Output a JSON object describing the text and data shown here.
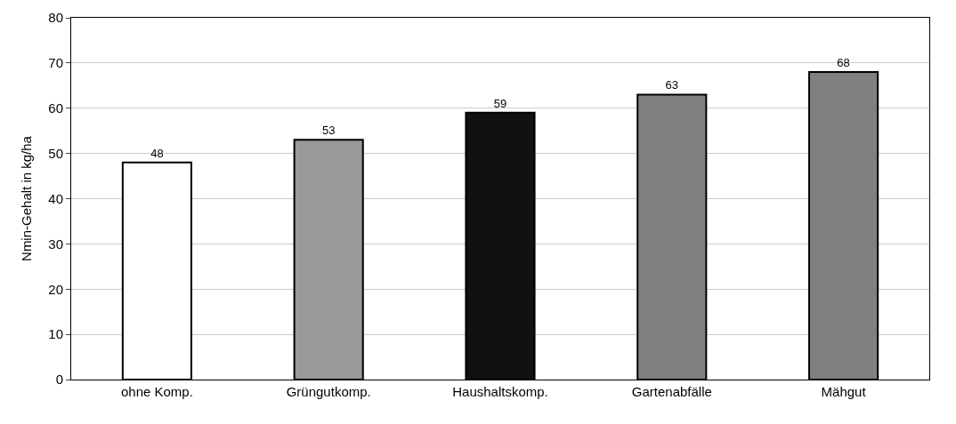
{
  "chart_data": {
    "type": "bar",
    "ylabel": "Nmin-Gehalt in kg/ha",
    "categories": [
      "ohne Komp.",
      "Grüngutkomp.",
      "Haushaltskomp.",
      "Gartenabfälle",
      "Mähgut"
    ],
    "values": [
      48,
      53,
      59,
      63,
      68
    ],
    "colors": [
      "#ffffff",
      "#999999",
      "#111111",
      "#808080",
      "#808080"
    ],
    "ylim": [
      0,
      80
    ],
    "yticks": [
      0,
      10,
      20,
      30,
      40,
      50,
      60,
      70,
      80
    ],
    "grid": "y",
    "data_labels": true,
    "legend": false
  }
}
